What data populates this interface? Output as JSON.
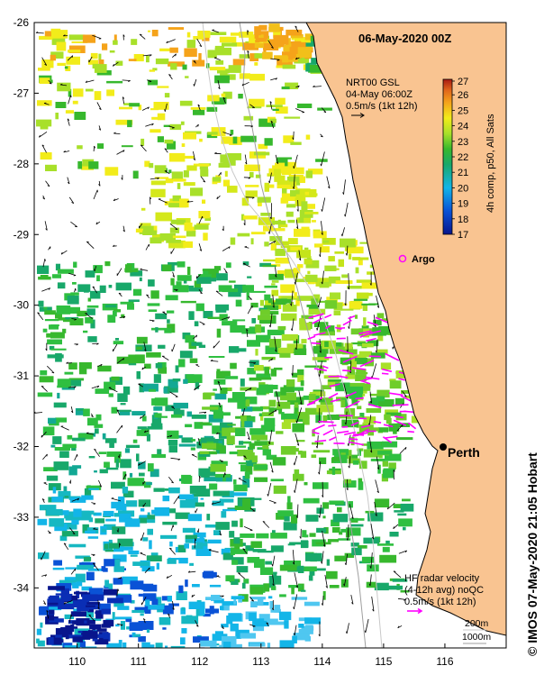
{
  "title": "06-May-2020 00Z",
  "sst_product": {
    "line1": "NRT00 GSL",
    "line2": "04-May 06:00Z",
    "line3": "0.5m/s (1kt 12h)"
  },
  "colorbar": {
    "label": "4h comp, p50, All Sats",
    "ticks": [
      "27",
      "26",
      "25",
      "24",
      "23",
      "22",
      "21",
      "20",
      "19",
      "18",
      "17"
    ],
    "min": 17,
    "max": 27
  },
  "radar": {
    "line1": "HF radar velocity",
    "line2": "(4-12h avg) noQC",
    "line3": "0.5m/s (1kt 12h)"
  },
  "contours": {
    "shallow": "200m",
    "deep": "1000m"
  },
  "argo_label": "Argo",
  "city_label": "Perth",
  "credit": "© IMOS 07-May-2020 21:05 Hobart",
  "axes": {
    "lat_ticks": [
      "-26",
      "-27",
      "-28",
      "-29",
      "-30",
      "-31",
      "-32",
      "-33",
      "-34"
    ],
    "lon_ticks": [
      "110",
      "111",
      "112",
      "113",
      "114",
      "115",
      "116"
    ],
    "lon_range": [
      109.3,
      117.0
    ],
    "lat_range": [
      -34.85,
      -26.0
    ]
  },
  "colors": {
    "land": "#f9c491",
    "radar_arrow": "#ff00ff",
    "argo": "#ff00ff"
  }
}
